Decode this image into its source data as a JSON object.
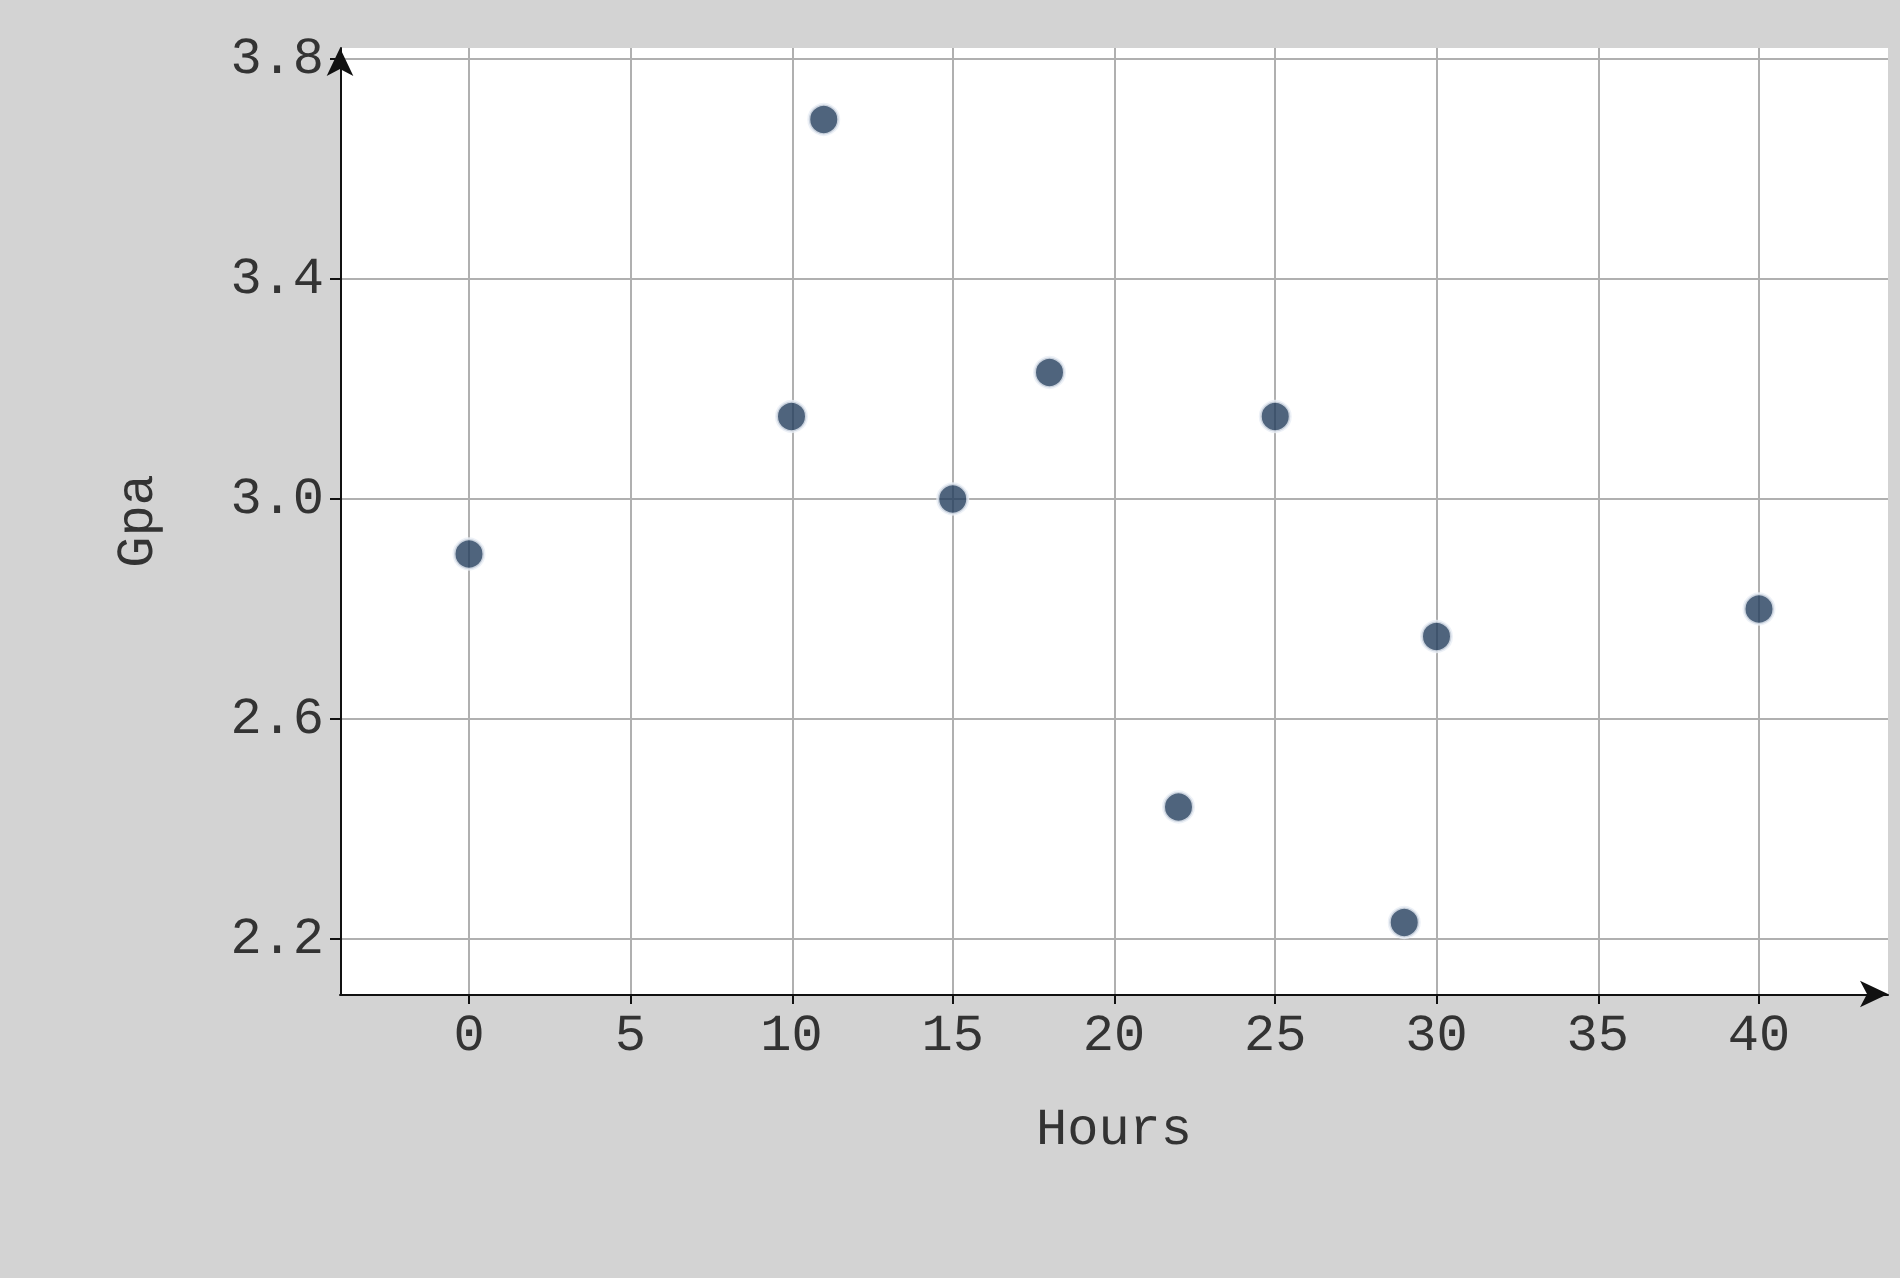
{
  "chart_data": {
    "type": "scatter",
    "xlabel": "Hours",
    "ylabel": "Gpa",
    "x": [
      0,
      10,
      11,
      15,
      18,
      22,
      25,
      29,
      30,
      40
    ],
    "values": [
      2.9,
      3.15,
      3.69,
      3.0,
      3.23,
      2.44,
      3.15,
      2.23,
      2.75,
      2.8
    ],
    "color": "#233d5c",
    "marker": "circle",
    "grid": true,
    "xlim": [
      -4,
      44
    ],
    "xticks": [
      0,
      5,
      10,
      15,
      20,
      25,
      30,
      35,
      40
    ],
    "ylim": [
      2.1,
      3.82
    ],
    "yticks": [
      {
        "value": 2.2,
        "label": "2.2"
      },
      {
        "value": 2.6,
        "label": "2.6"
      },
      {
        "value": 3.0,
        "label": "3.0"
      },
      {
        "value": 3.4,
        "label": "3.4"
      },
      {
        "value": 3.8,
        "label": "3.8"
      }
    ]
  }
}
